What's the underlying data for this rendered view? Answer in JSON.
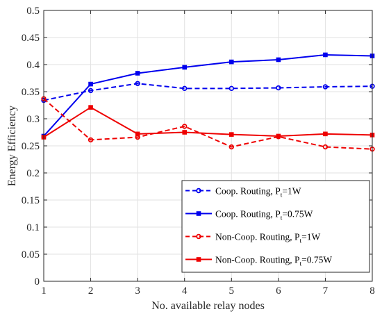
{
  "chart_data": {
    "type": "line",
    "xlabel": "No. available relay nodes",
    "ylabel": "Energy Efficiency",
    "x": [
      1,
      2,
      3,
      4,
      5,
      6,
      7,
      8
    ],
    "xlim": [
      1,
      8
    ],
    "ylim": [
      0,
      0.5
    ],
    "xticks": [
      "1",
      "2",
      "3",
      "4",
      "5",
      "6",
      "7",
      "8"
    ],
    "yticks": [
      "0",
      "0.05",
      "0.1",
      "0.15",
      "0.2",
      "0.25",
      "0.3",
      "0.35",
      "0.4",
      "0.45",
      "0.5"
    ],
    "grid": true,
    "legend_position": "lower-right",
    "series": [
      {
        "name": "Coop. Routing, Pt=1W",
        "legend_main": "Coop. Routing, P",
        "legend_sub": "t",
        "legend_tail": "=1W",
        "color": "#0000ee",
        "line": "dashed",
        "marker": "circle",
        "values": [
          0.334,
          0.352,
          0.365,
          0.356,
          0.356,
          0.357,
          0.359,
          0.36
        ]
      },
      {
        "name": "Coop. Routing, Pt=0.75W",
        "legend_main": "Coop. Routing, P",
        "legend_sub": "t",
        "legend_tail": "=0.75W",
        "color": "#0000ee",
        "line": "solid",
        "marker": "square",
        "values": [
          0.268,
          0.364,
          0.384,
          0.395,
          0.405,
          0.409,
          0.418,
          0.416
        ]
      },
      {
        "name": "Non-Coop. Routing, Pt=1W",
        "legend_main": "Non-Coop. Routing, P",
        "legend_sub": "t",
        "legend_tail": "=1W",
        "color": "#ee0000",
        "line": "dashed",
        "marker": "circle",
        "values": [
          0.337,
          0.261,
          0.266,
          0.286,
          0.248,
          0.267,
          0.248,
          0.244
        ]
      },
      {
        "name": "Non-Coop. Routing, Pt=0.75W",
        "legend_main": "Non-Coop. Routing, P",
        "legend_sub": "t",
        "legend_tail": "=0.75W",
        "color": "#ee0000",
        "line": "solid",
        "marker": "square",
        "values": [
          0.266,
          0.321,
          0.272,
          0.275,
          0.271,
          0.268,
          0.272,
          0.27
        ]
      }
    ]
  }
}
